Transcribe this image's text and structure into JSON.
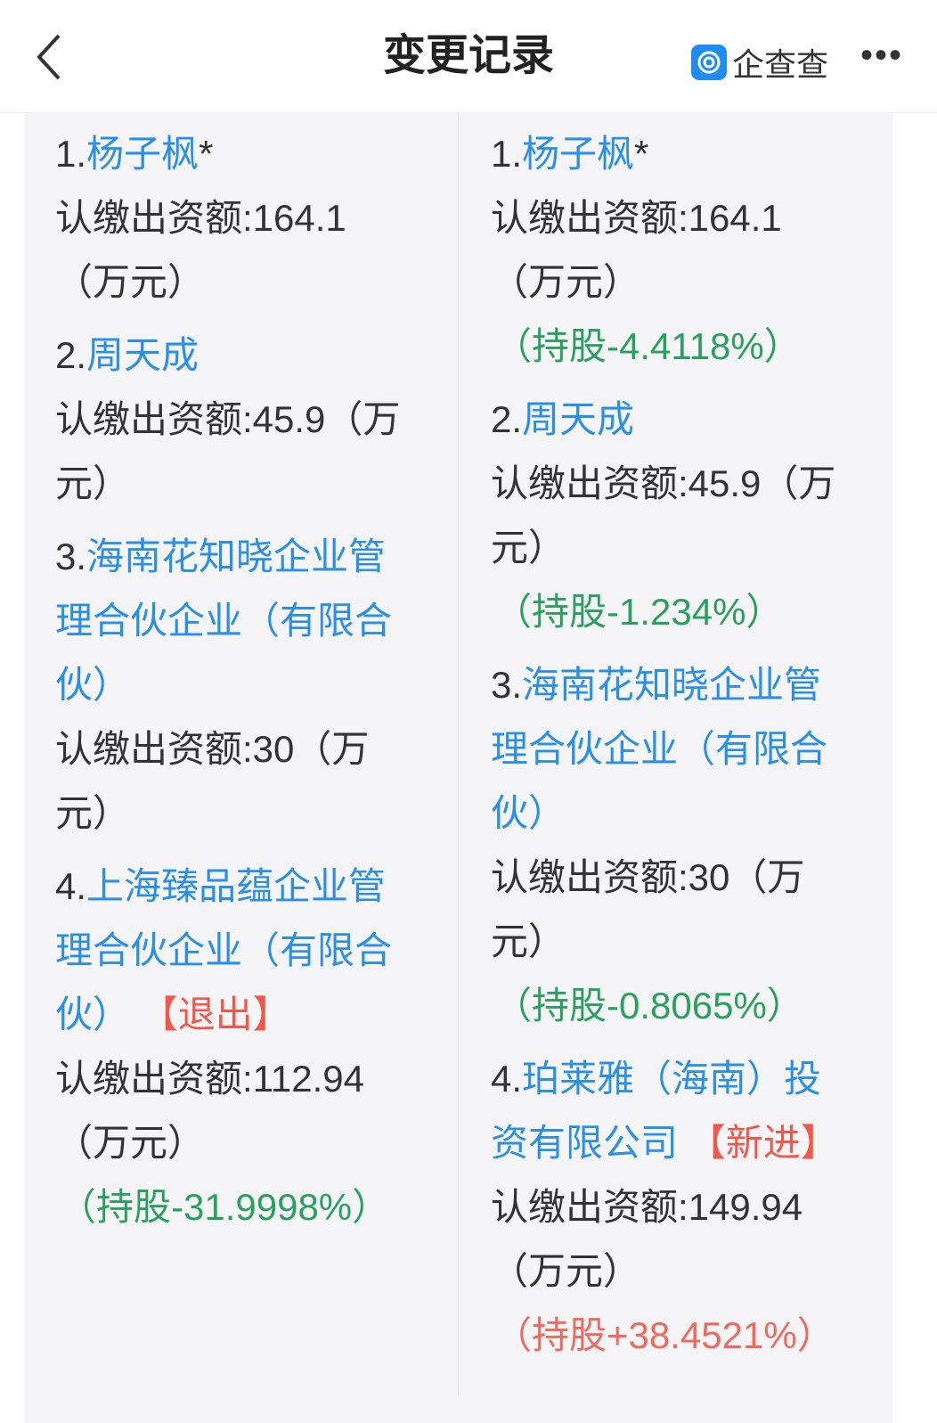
{
  "header": {
    "title": "变更记录",
    "brand": "企查查",
    "back_icon": "chevron-left-icon",
    "more_icon": "more-icon"
  },
  "colors": {
    "link": "#2c8fe6",
    "tag": "#f0584b",
    "share_down": "#2aa05f",
    "share_up": "#ef6a5e"
  },
  "before": {
    "items": [
      {
        "num": "1.",
        "name": "杨子枫",
        "suffix": "*",
        "tag": "",
        "amount": "认缴出资额:164.1（万元）",
        "share": ""
      },
      {
        "num": "2.",
        "name": "周天成",
        "suffix": "",
        "tag": "",
        "amount": "认缴出资额:45.9（万元）",
        "share": ""
      },
      {
        "num": "3.",
        "name": "海南花知晓企业管理合伙企业（有限合伙）",
        "suffix": "",
        "tag": "",
        "amount": "认缴出资额:30（万元）",
        "share": ""
      },
      {
        "num": "4.",
        "name": "上海臻品蕴企业管理合伙企业（有限合伙）",
        "suffix": "",
        "tag": "【退出】",
        "amount": "认缴出资额:112.94（万元）",
        "share": "（持股-31.9998%）"
      }
    ]
  },
  "after": {
    "items": [
      {
        "num": "1.",
        "name": "杨子枫",
        "suffix": "*",
        "tag": "",
        "amount": "认缴出资额:164.1（万元）",
        "share": "（持股-4.4118%）"
      },
      {
        "num": "2.",
        "name": "周天成",
        "suffix": "",
        "tag": "",
        "amount": "认缴出资额:45.9（万元）",
        "share": "（持股-1.234%）"
      },
      {
        "num": "3.",
        "name": "海南花知晓企业管理合伙企业（有限合伙）",
        "suffix": "",
        "tag": "",
        "amount": "认缴出资额:30（万元）",
        "share": "（持股-0.8065%）"
      },
      {
        "num": "4.",
        "name": "珀莱雅（海南）投资有限公司",
        "suffix": "",
        "tag": "【新进】",
        "amount": "认缴出资额:149.94（万元）",
        "share": "（持股+38.4521%）"
      }
    ]
  }
}
